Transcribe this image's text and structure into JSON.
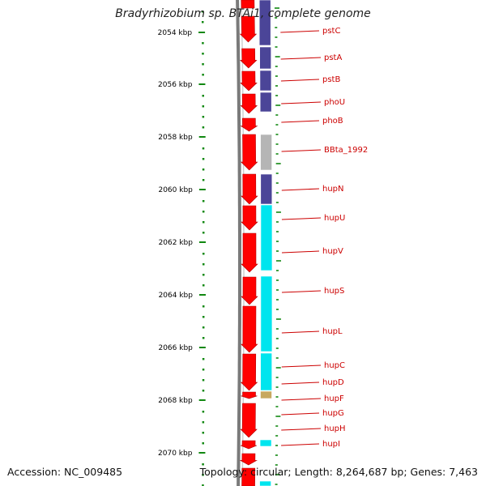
{
  "title": "Bradyrhizobium sp. BTAi1, complete genome",
  "accession": "Accession: NC_009485",
  "topology": "Topology: circular; Length: 8,264,687 bp; Genes: 7,463",
  "colors": {
    "forward_cds": "#ff0000",
    "cog_blue": "#4b4598",
    "cog_gray": "#b5b5b5",
    "cog_cyan": "#00e5ee",
    "cog_khaki": "#c7a85f",
    "tick_green": "#118811",
    "label_red": "#cc0000"
  },
  "ruler": {
    "labels": [
      "2054 kbp",
      "2056 kbp",
      "2058 kbp",
      "2060 kbp",
      "2062 kbp",
      "2064 kbp",
      "2066 kbp",
      "2068 kbp",
      "2070 kbp"
    ]
  },
  "genes": [
    "pstC",
    "pstA",
    "pstB",
    "phoU",
    "phoB",
    "BBta_1992",
    "hupN",
    "hupU",
    "hupV",
    "hupS",
    "hupL",
    "hupC",
    "hupD",
    "hupF",
    "hupG",
    "hupH",
    "hupI"
  ]
}
